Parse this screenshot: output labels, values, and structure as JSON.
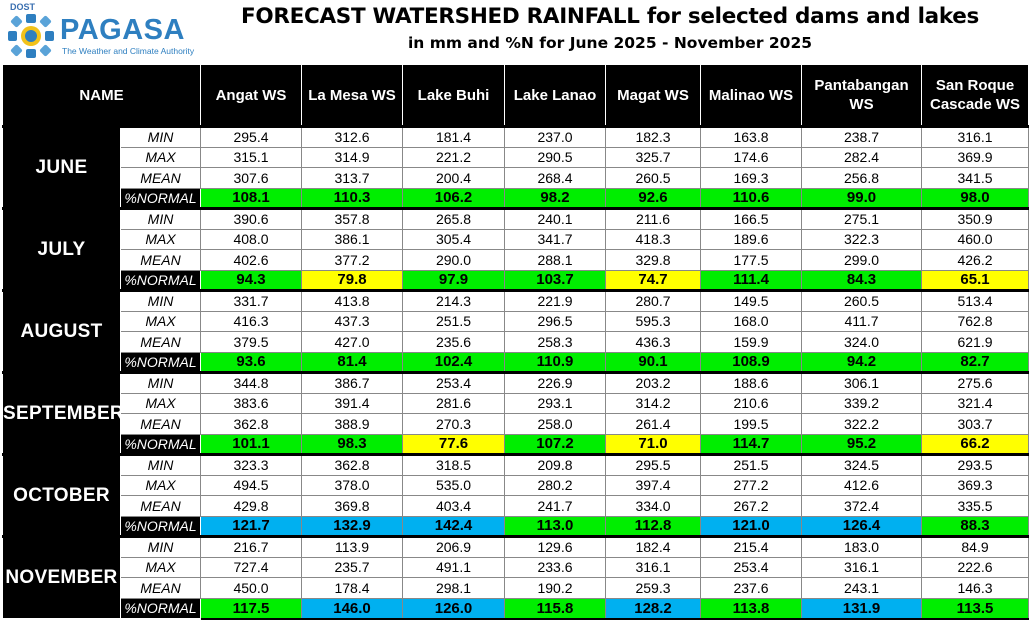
{
  "logo": {
    "agency": "DOST",
    "name": "PAGASA",
    "tagline": "The Weather and Climate Authority"
  },
  "title": "FORECAST WATERSHED RAINFALL for selected dams and lakes",
  "subtitle": "in mm and %N for June 2025 - November 2025",
  "name_header": "NAME",
  "columns": [
    "Angat WS",
    "La Mesa WS",
    "Lake Buhi",
    "Lake Lanao",
    "Magat WS",
    "Malinao WS",
    "Pantabangan WS",
    "San Roque Cascade WS"
  ],
  "stat_labels": [
    "MIN",
    "MAX",
    "MEAN",
    "%NORMAL"
  ],
  "colors": {
    "green": "#00ee00",
    "yellow": "#ffff00",
    "blue": "#00b0f0"
  },
  "months": [
    {
      "name": "JUNE",
      "min": [
        "295.4",
        "312.6",
        "181.4",
        "237.0",
        "182.3",
        "163.8",
        "238.7",
        "316.1"
      ],
      "max": [
        "315.1",
        "314.9",
        "221.2",
        "290.5",
        "325.7",
        "174.6",
        "282.4",
        "369.9"
      ],
      "mean": [
        "307.6",
        "313.7",
        "200.4",
        "268.4",
        "260.5",
        "169.3",
        "256.8",
        "341.5"
      ],
      "normal": [
        "108.1",
        "110.3",
        "106.2",
        "98.2",
        "92.6",
        "110.6",
        "99.0",
        "98.0"
      ],
      "normal_color": [
        "green",
        "green",
        "green",
        "green",
        "green",
        "green",
        "green",
        "green"
      ]
    },
    {
      "name": "JULY",
      "min": [
        "390.6",
        "357.8",
        "265.8",
        "240.1",
        "211.6",
        "166.5",
        "275.1",
        "350.9"
      ],
      "max": [
        "408.0",
        "386.1",
        "305.4",
        "341.7",
        "418.3",
        "189.6",
        "322.3",
        "460.0"
      ],
      "mean": [
        "402.6",
        "377.2",
        "290.0",
        "288.1",
        "329.8",
        "177.5",
        "299.0",
        "426.2"
      ],
      "normal": [
        "94.3",
        "79.8",
        "97.9",
        "103.7",
        "74.7",
        "111.4",
        "84.3",
        "65.1"
      ],
      "normal_color": [
        "green",
        "yellow",
        "green",
        "green",
        "yellow",
        "green",
        "green",
        "yellow"
      ]
    },
    {
      "name": "AUGUST",
      "min": [
        "331.7",
        "413.8",
        "214.3",
        "221.9",
        "280.7",
        "149.5",
        "260.5",
        "513.4"
      ],
      "max": [
        "416.3",
        "437.3",
        "251.5",
        "296.5",
        "595.3",
        "168.0",
        "411.7",
        "762.8"
      ],
      "mean": [
        "379.5",
        "427.0",
        "235.6",
        "258.3",
        "436.3",
        "159.9",
        "324.0",
        "621.9"
      ],
      "normal": [
        "93.6",
        "81.4",
        "102.4",
        "110.9",
        "90.1",
        "108.9",
        "94.2",
        "82.7"
      ],
      "normal_color": [
        "green",
        "green",
        "green",
        "green",
        "green",
        "green",
        "green",
        "green"
      ]
    },
    {
      "name": "SEPTEMBER",
      "min": [
        "344.8",
        "386.7",
        "253.4",
        "226.9",
        "203.2",
        "188.6",
        "306.1",
        "275.6"
      ],
      "max": [
        "383.6",
        "391.4",
        "281.6",
        "293.1",
        "314.2",
        "210.6",
        "339.2",
        "321.4"
      ],
      "mean": [
        "362.8",
        "388.9",
        "270.3",
        "258.0",
        "261.4",
        "199.5",
        "322.2",
        "303.7"
      ],
      "normal": [
        "101.1",
        "98.3",
        "77.6",
        "107.2",
        "71.0",
        "114.7",
        "95.2",
        "66.2"
      ],
      "normal_color": [
        "green",
        "green",
        "yellow",
        "green",
        "yellow",
        "green",
        "green",
        "yellow"
      ]
    },
    {
      "name": "OCTOBER",
      "min": [
        "323.3",
        "362.8",
        "318.5",
        "209.8",
        "295.5",
        "251.5",
        "324.5",
        "293.5"
      ],
      "max": [
        "494.5",
        "378.0",
        "535.0",
        "280.2",
        "397.4",
        "277.2",
        "412.6",
        "369.3"
      ],
      "mean": [
        "429.8",
        "369.8",
        "403.4",
        "241.7",
        "334.0",
        "267.2",
        "372.4",
        "335.5"
      ],
      "normal": [
        "121.7",
        "132.9",
        "142.4",
        "113.0",
        "112.8",
        "121.0",
        "126.4",
        "88.3"
      ],
      "normal_color": [
        "blue",
        "blue",
        "blue",
        "green",
        "green",
        "blue",
        "blue",
        "green"
      ]
    },
    {
      "name": "NOVEMBER",
      "min": [
        "216.7",
        "113.9",
        "206.9",
        "129.6",
        "182.4",
        "215.4",
        "183.0",
        "84.9"
      ],
      "max": [
        "727.4",
        "235.7",
        "491.1",
        "233.6",
        "316.1",
        "253.4",
        "316.1",
        "222.6"
      ],
      "mean": [
        "450.0",
        "178.4",
        "298.1",
        "190.2",
        "259.3",
        "237.6",
        "243.1",
        "146.3"
      ],
      "normal": [
        "117.5",
        "146.0",
        "126.0",
        "115.8",
        "128.2",
        "113.8",
        "131.9",
        "113.5"
      ],
      "normal_color": [
        "green",
        "blue",
        "blue",
        "green",
        "blue",
        "green",
        "blue",
        "green"
      ]
    }
  ]
}
